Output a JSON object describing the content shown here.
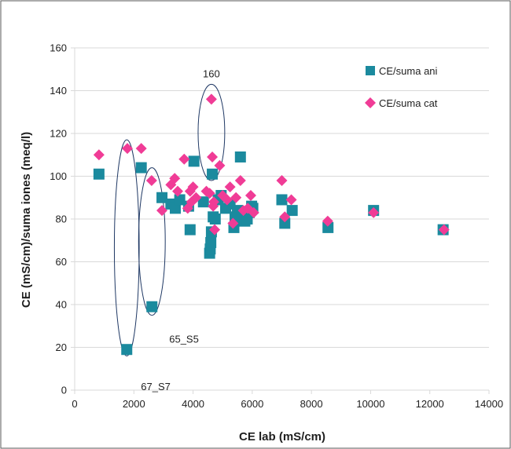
{
  "chart_data": {
    "type": "scatter",
    "xlabel": "CE lab (mS/cm)",
    "ylabel": "CE (mS/cm)/suma iones (meq/l)",
    "xlim": [
      0,
      14000
    ],
    "ylim": [
      0,
      160
    ],
    "xticks": [
      0,
      2000,
      4000,
      6000,
      8000,
      10000,
      12000,
      14000
    ],
    "yticks": [
      0,
      20,
      40,
      60,
      80,
      100,
      120,
      140,
      160
    ],
    "xtick_labels": [
      "0",
      "2000",
      "4000",
      "6000",
      "8000",
      "10000",
      "12000",
      "14000"
    ],
    "ytick_labels": [
      "0",
      "20",
      "40",
      "60",
      "80",
      "100",
      "120",
      "140",
      "160"
    ],
    "grid": "horizontal",
    "legend_position": "top-right",
    "series": [
      {
        "name": "CE/suma ani",
        "marker": "square",
        "color": "#1b8a9e",
        "x": [
          820,
          1760,
          2250,
          2610,
          2950,
          3250,
          3400,
          3550,
          3850,
          3900,
          4030,
          4350,
          4560,
          4580,
          4600,
          4620,
          4650,
          4680,
          4750,
          4850,
          4950,
          5100,
          5250,
          5380,
          5420,
          5500,
          5600,
          5650,
          5750,
          5830,
          5900,
          5980,
          6020,
          7000,
          7100,
          7350,
          8560,
          10100,
          12450
        ],
        "y": [
          101,
          19,
          104,
          39,
          90,
          87,
          85,
          89,
          86,
          75,
          107,
          88,
          64,
          66,
          69,
          74,
          101,
          81,
          80,
          89,
          91,
          85,
          87,
          76,
          81,
          84,
          109,
          81,
          79,
          80,
          83,
          86,
          85,
          89,
          78,
          84,
          76,
          84,
          75
        ]
      },
      {
        "name": "CE/suma cat",
        "marker": "diamond",
        "color": "#f03c96",
        "x": [
          820,
          1780,
          2250,
          2600,
          2950,
          3250,
          3380,
          3480,
          3700,
          3820,
          3900,
          3950,
          4000,
          4100,
          4450,
          4560,
          4620,
          4650,
          4680,
          4700,
          4730,
          4900,
          5000,
          5150,
          5250,
          5350,
          5450,
          5600,
          5700,
          5850,
          5950,
          6050,
          7000,
          7100,
          7320,
          8550,
          10100,
          12480
        ],
        "y": [
          110,
          113,
          113,
          98,
          84,
          96,
          99,
          93,
          108,
          85,
          93,
          88,
          95,
          90,
          93,
          92,
          136,
          109,
          86,
          88,
          75,
          105,
          91,
          89,
          95,
          78,
          90,
          98,
          84,
          85,
          91,
          83,
          98,
          81,
          89,
          79,
          83,
          75
        ]
      }
    ],
    "annotations": [
      {
        "text": "160",
        "target_x": 4620,
        "target_y": 136
      },
      {
        "text": "65_S5",
        "target_x": 2610,
        "target_y": 39
      },
      {
        "text": "67_S7",
        "target_x": 1760,
        "target_y": 19
      }
    ],
    "ellipses": [
      {
        "cx": 4620,
        "cy_top": 143,
        "cy_bottom": 98,
        "x_halfwidth": 450
      },
      {
        "cx": 2610,
        "cy_top": 104,
        "cy_bottom": 35,
        "x_halfwidth": 450
      },
      {
        "cx": 1760,
        "cy_top": 117,
        "cy_bottom": 16,
        "x_halfwidth": 420
      }
    ]
  },
  "colors": {
    "axis": "#d9d9d9",
    "grid": "#d9d9d9",
    "ellipse": "#1f3864",
    "frame": "#595959"
  }
}
